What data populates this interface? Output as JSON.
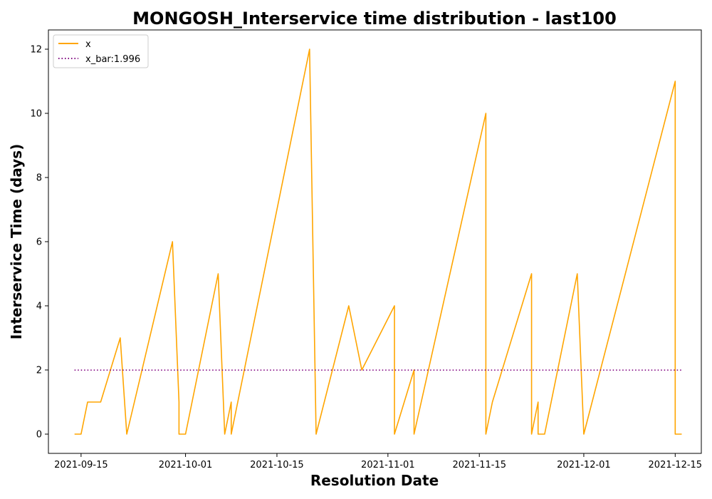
{
  "chart_data": {
    "type": "line",
    "title": "MONGOSH_Interservice time distribution - last100",
    "xlabel": "Resolution Date",
    "ylabel": "Interservice Time (days)",
    "x_ticks": [
      "2021-09-15",
      "2021-10-01",
      "2021-10-15",
      "2021-11-01",
      "2021-11-15",
      "2021-12-01",
      "2021-12-15"
    ],
    "y_ticks": [
      0,
      2,
      4,
      6,
      8,
      10,
      12
    ],
    "xlim": [
      "2021-09-10",
      "2021-12-19"
    ],
    "ylim": [
      -0.6,
      12.6
    ],
    "grid": false,
    "legend_position": "top-left",
    "series": [
      {
        "name": "x",
        "color": "#FFA500",
        "style": "solid",
        "x": [
          "2021-09-14",
          "2021-09-15",
          "2021-09-16",
          "2021-09-18",
          "2021-09-21",
          "2021-09-22",
          "2021-09-29",
          "2021-09-30",
          "2021-09-30",
          "2021-10-01",
          "2021-10-06",
          "2021-10-07",
          "2021-10-08",
          "2021-10-08",
          "2021-10-20",
          "2021-10-21",
          "2021-10-26",
          "2021-10-28",
          "2021-11-02",
          "2021-11-02",
          "2021-11-05",
          "2021-11-05",
          "2021-11-05",
          "2021-11-16",
          "2021-11-16",
          "2021-11-17",
          "2021-11-23",
          "2021-11-23",
          "2021-11-24",
          "2021-11-24",
          "2021-11-25",
          "2021-11-30",
          "2021-12-01",
          "2021-12-01",
          "2021-12-15",
          "2021-12-15",
          "2021-12-16"
        ],
        "y": [
          0,
          0,
          1,
          1,
          3,
          0,
          6,
          1,
          0,
          0,
          5,
          0,
          1,
          0,
          12,
          0,
          4,
          2,
          4,
          0,
          2,
          0,
          0,
          10,
          0,
          1,
          5,
          0,
          1,
          0,
          0,
          5,
          0,
          0,
          11,
          0,
          0
        ]
      },
      {
        "name": "x_bar:1.996",
        "color": "#800080",
        "style": "dotted",
        "x": [
          "2021-09-14",
          "2021-12-16"
        ],
        "y": [
          1.996,
          1.996
        ]
      }
    ]
  }
}
